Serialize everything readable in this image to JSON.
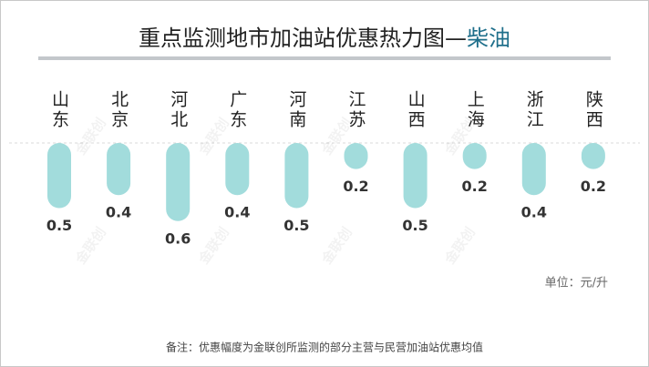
{
  "chart_data": {
    "type": "pill",
    "title": "重点监测地市加油站优惠热力图—",
    "title_highlight": "柴油",
    "categories": [
      "山东",
      "北京",
      "河北",
      "广东",
      "河南",
      "江苏",
      "山西",
      "上海",
      "浙江",
      "陕西"
    ],
    "values": [
      0.5,
      0.4,
      0.6,
      0.4,
      0.5,
      0.2,
      0.5,
      0.2,
      0.4,
      0.2
    ],
    "color": "#a2dcdc",
    "highlight_color": "#1f6f8b",
    "unit": "单位：元/升",
    "note": "备注：优惠幅度为金联创所监测的部分主营与民营加油站优惠均值",
    "watermark": "金联创"
  }
}
